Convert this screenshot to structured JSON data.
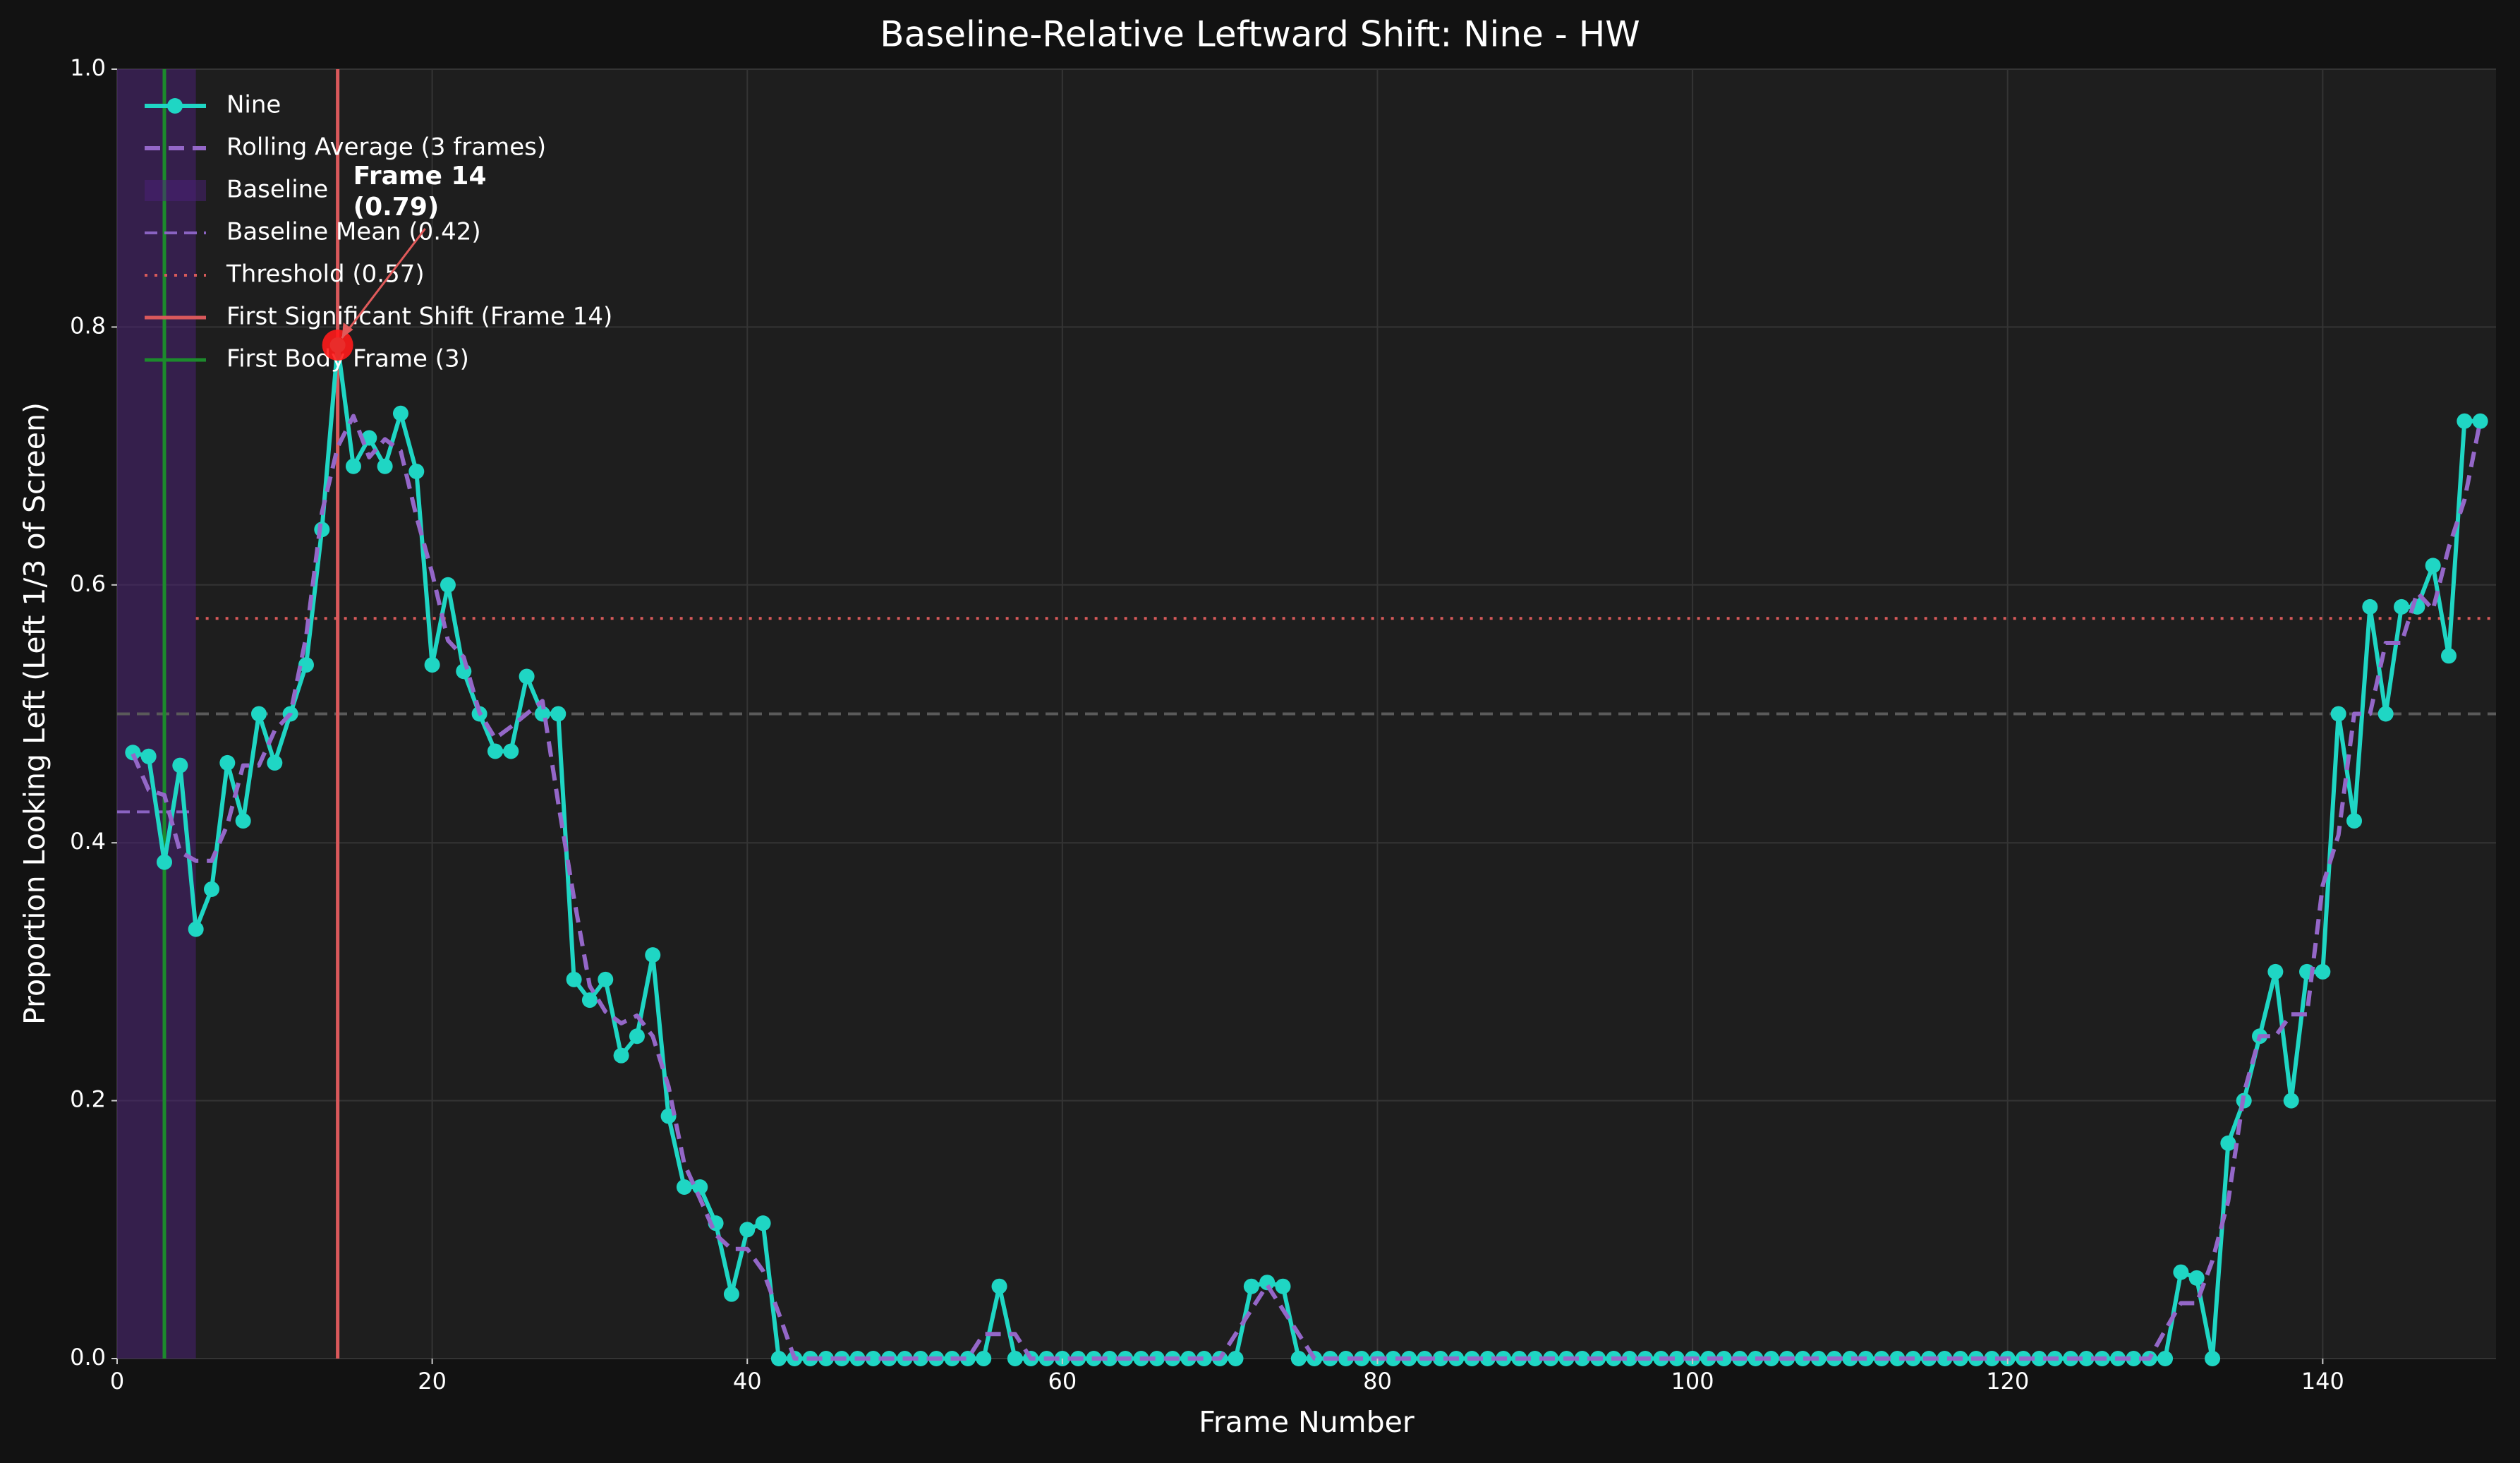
{
  "chart_data": {
    "type": "line",
    "title": "Baseline-Relative Leftward Shift: Nine - HW",
    "xlabel": "Frame Number",
    "ylabel": "Proportion Looking Left (Left 1/3 of Screen)",
    "xlim": [
      0,
      151
    ],
    "ylim": [
      0,
      1
    ],
    "xticks": [
      0,
      20,
      40,
      60,
      80,
      100,
      120,
      140
    ],
    "yticks": [
      {
        "value": 0,
        "label": "0.0"
      },
      {
        "value": 0.2,
        "label": "0.2"
      },
      {
        "value": 0.4,
        "label": "0.4"
      },
      {
        "value": 0.6,
        "label": "0.6"
      },
      {
        "value": 0.8,
        "label": "0.8"
      },
      {
        "value": 1,
        "label": "1.0"
      }
    ],
    "grid": true,
    "x": [
      1,
      2,
      3,
      4,
      5,
      6,
      7,
      8,
      9,
      10,
      11,
      12,
      13,
      14,
      15,
      16,
      17,
      18,
      19,
      20,
      21,
      22,
      23,
      24,
      25,
      26,
      27,
      28,
      29,
      30,
      31,
      32,
      33,
      34,
      35,
      36,
      37,
      38,
      39,
      40,
      41,
      42,
      43,
      44,
      45,
      46,
      47,
      48,
      49,
      50,
      51,
      52,
      53,
      54,
      55,
      56,
      57,
      58,
      59,
      60,
      61,
      62,
      63,
      64,
      65,
      66,
      67,
      68,
      69,
      70,
      71,
      72,
      73,
      74,
      75,
      76,
      77,
      78,
      79,
      80,
      81,
      82,
      83,
      84,
      85,
      86,
      87,
      88,
      89,
      90,
      91,
      92,
      93,
      94,
      95,
      96,
      97,
      98,
      99,
      100,
      101,
      102,
      103,
      104,
      105,
      106,
      107,
      108,
      109,
      110,
      111,
      112,
      113,
      114,
      115,
      116,
      117,
      118,
      119,
      120,
      121,
      122,
      123,
      124,
      125,
      126,
      127,
      128,
      129,
      130,
      131,
      132,
      133,
      134,
      135,
      136,
      137,
      138,
      139,
      140,
      141,
      142,
      143,
      144,
      145,
      146,
      147,
      148,
      149,
      150
    ],
    "series": [
      {
        "name": "Nine",
        "color": "#1fd6c4",
        "style": "solid",
        "marker": true,
        "values": [
          0.47,
          0.467,
          0.385,
          0.46,
          0.333,
          0.364,
          0.462,
          0.417,
          0.5,
          0.462,
          0.5,
          0.538,
          0.643,
          0.786,
          0.692,
          0.714,
          0.692,
          0.733,
          0.688,
          0.538,
          0.6,
          0.533,
          0.5,
          0.471,
          0.471,
          0.529,
          0.5,
          0.5,
          0.294,
          0.278,
          0.294,
          0.235,
          0.25,
          0.313,
          0.188,
          0.133,
          0.133,
          0.105,
          0.05,
          0.1,
          0.105,
          0,
          0,
          0,
          0,
          0,
          0,
          0,
          0,
          0,
          0,
          0,
          0,
          0,
          0,
          0.056,
          0,
          0,
          0,
          0,
          0,
          0,
          0,
          0,
          0,
          0,
          0,
          0,
          0,
          0,
          0,
          0.056,
          0.059,
          0.056,
          0,
          0,
          0,
          0,
          0,
          0,
          0,
          0,
          0,
          0,
          0,
          0,
          0,
          0,
          0,
          0,
          0,
          0,
          0,
          0,
          0,
          0,
          0,
          0,
          0,
          0,
          0,
          0,
          0,
          0,
          0,
          0,
          0,
          0,
          0,
          0,
          0,
          0,
          0,
          0,
          0,
          0,
          0,
          0,
          0,
          0,
          0,
          0,
          0,
          0,
          0,
          0,
          0,
          0,
          0,
          0,
          0.067,
          0.0625,
          0,
          0.167,
          0.2,
          0.25,
          0.3,
          0.2,
          0.3,
          0.3,
          0.5,
          0.417,
          0.583,
          0.5,
          0.583,
          0.583,
          0.615,
          0.545,
          0.727,
          0.727
        ]
      },
      {
        "name": "Rolling Average (3 frames)",
        "color": "#9467c8",
        "style": "dashed",
        "marker": false,
        "values": [
          0.469,
          0.441,
          0.437,
          0.393,
          0.386,
          0.386,
          0.414,
          0.46,
          0.46,
          0.487,
          0.5,
          0.56,
          0.656,
          0.707,
          0.731,
          0.699,
          0.713,
          0.704,
          0.653,
          0.609,
          0.557,
          0.544,
          0.501,
          0.481,
          0.49,
          0.5,
          0.51,
          0.431,
          0.357,
          0.289,
          0.269,
          0.26,
          0.266,
          0.25,
          0.211,
          0.151,
          0.124,
          0.096,
          0.085,
          0.085,
          0.068,
          0.035,
          0,
          0,
          0,
          0,
          0,
          0,
          0,
          0,
          0,
          0,
          0,
          0,
          0.019,
          0.019,
          0.019,
          0,
          0,
          0,
          0,
          0,
          0,
          0,
          0,
          0,
          0,
          0,
          0,
          0,
          0.019,
          0.038,
          0.057,
          0.038,
          0.019,
          0,
          0,
          0,
          0,
          0,
          0,
          0,
          0,
          0,
          0,
          0,
          0,
          0,
          0,
          0,
          0,
          0,
          0,
          0,
          0,
          0,
          0,
          0,
          0,
          0,
          0,
          0,
          0,
          0,
          0,
          0,
          0,
          0,
          0,
          0,
          0,
          0,
          0,
          0,
          0,
          0,
          0,
          0,
          0,
          0,
          0,
          0,
          0,
          0,
          0,
          0,
          0,
          0,
          0,
          0.022,
          0.043,
          0.043,
          0.076,
          0.122,
          0.206,
          0.25,
          0.25,
          0.267,
          0.267,
          0.367,
          0.406,
          0.5,
          0.5,
          0.555,
          0.555,
          0.594,
          0.581,
          0.629,
          0.666,
          0.727
        ]
      }
    ],
    "baseline": {
      "name": "Baseline",
      "start": 0,
      "end": 5,
      "color": "#4b1f7a"
    },
    "baseline_mean": {
      "name": "Baseline Mean (0.42)",
      "value": 0.424,
      "start": 0,
      "end": 5,
      "color": "#8a63c2"
    },
    "threshold": {
      "name": "Threshold (0.57)",
      "value": 0.574,
      "start": 5,
      "color": "#d65a5a"
    },
    "reference_y": 0.5,
    "first_shift": {
      "name": "First Significant Shift (Frame 14)",
      "x": 14,
      "color": "#d9585b"
    },
    "first_body": {
      "name": "First Body Frame (3)",
      "x": 3,
      "color": "#1c8a2c"
    },
    "annotation": {
      "lines": [
        "Frame 14",
        "(0.79)"
      ],
      "point": 13
    }
  }
}
